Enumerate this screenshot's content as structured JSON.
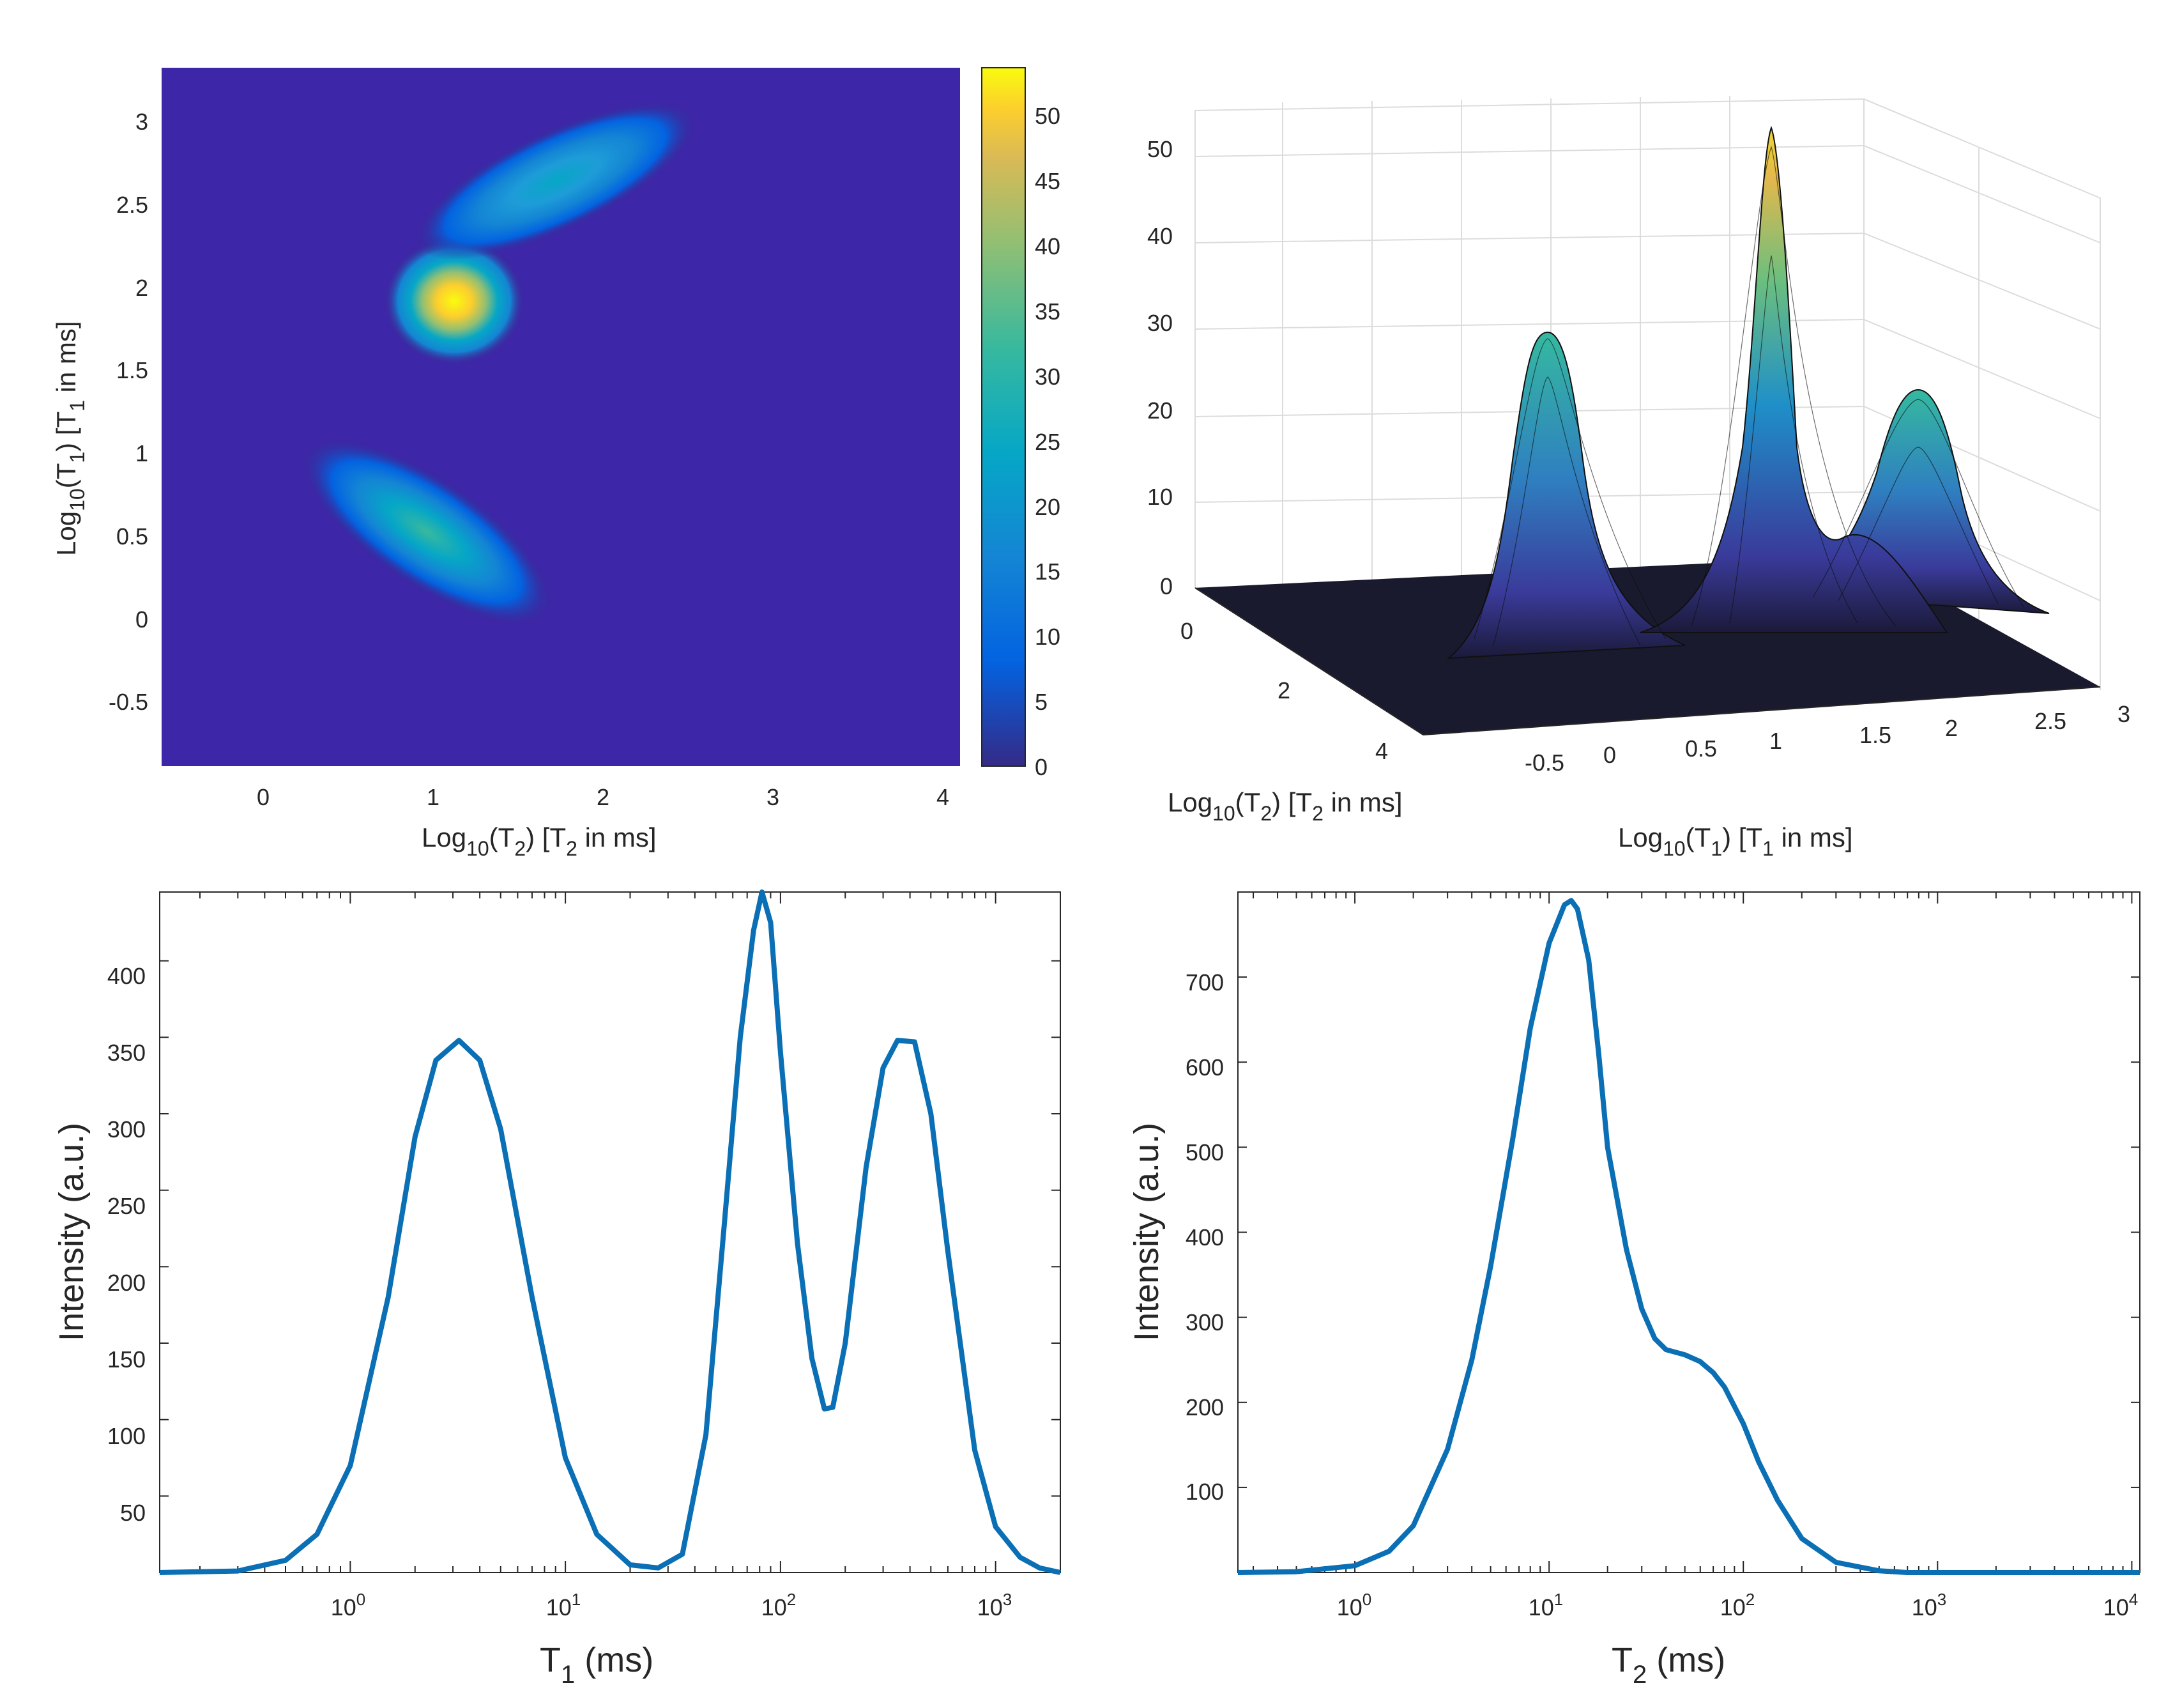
{
  "chart_data": [
    {
      "type": "heatmap",
      "panel": "top-left",
      "xlabel_main": "Log",
      "xlabel_sub": "10",
      "xlabel_rest": "(T",
      "xlabel_sub2": "2",
      "xlabel_tail": ")  [T",
      "xlabel_sub3": "2",
      "xlabel_end": " in ms]",
      "ylabel_main": "Log",
      "ylabel_sub": "10",
      "ylabel_rest": "(T",
      "ylabel_sub2": "1",
      "ylabel_tail": ")  [T",
      "ylabel_sub3": "1",
      "ylabel_end": " in ms]",
      "xlim": [
        -0.55,
        4.15
      ],
      "ylim": [
        -0.9,
        3.3
      ],
      "xticks": [
        "0",
        "1",
        "2",
        "3",
        "4"
      ],
      "yticks": [
        "-0.5",
        "0",
        "0.5",
        "1",
        "1.5",
        "2",
        "2.5",
        "3"
      ],
      "colorbar": {
        "ticks": [
          "0",
          "5",
          "10",
          "15",
          "20",
          "25",
          "30",
          "35",
          "40",
          "45",
          "50"
        ],
        "range": [
          0,
          53
        ]
      },
      "colormap": "parula",
      "peaks": [
        {
          "x": 0.95,
          "y": 0.5,
          "amplitude": 28,
          "shape": "elongated ellipse, tilted"
        },
        {
          "x": 1.15,
          "y": 1.95,
          "amplitude": 53,
          "shape": "round"
        },
        {
          "x": 1.75,
          "y": 2.6,
          "amplitude": 24,
          "shape": "elongated ellipse, tilted"
        }
      ]
    },
    {
      "type": "surface",
      "panel": "top-right",
      "xlabel_main": "Log",
      "xlabel_sub": "10",
      "xlabel_rest": "(T",
      "xlabel_sub2": "2",
      "xlabel_tail": ")  [T",
      "xlabel_sub3": "2",
      "xlabel_end": " in ms]",
      "ylabel_main": "Log",
      "ylabel_sub": "10",
      "ylabel_rest": "(T",
      "ylabel_sub2": "1",
      "ylabel_tail": ")  [T",
      "ylabel_sub3": "1",
      "ylabel_end": " in ms]",
      "zticks": [
        "0",
        "10",
        "20",
        "30",
        "40",
        "50"
      ],
      "t2_ticks": [
        "0",
        "2",
        "4"
      ],
      "t1_ticks": [
        "-0.5",
        "0",
        "0.5",
        "1",
        "1.5",
        "2",
        "2.5",
        "3"
      ],
      "zlim": [
        0,
        55
      ],
      "peaks": [
        {
          "t1": 0.5,
          "height": 30
        },
        {
          "t1": 1.95,
          "height": 53
        },
        {
          "t1": 2.6,
          "height": 24
        }
      ]
    },
    {
      "type": "line",
      "panel": "bottom-left",
      "xlabel": "T",
      "xlabel_sub": "1",
      "xlabel_unit": "  (ms)",
      "ylabel": "Intensity (a.u.)",
      "xscale": "log",
      "xlim": [
        0.13,
        2000
      ],
      "ylim": [
        0,
        445
      ],
      "yticks": [
        "50",
        "100",
        "150",
        "200",
        "250",
        "300",
        "350",
        "400"
      ],
      "xticks": [
        {
          "base": "10",
          "exp": "0"
        },
        {
          "base": "10",
          "exp": "1"
        },
        {
          "base": "10",
          "exp": "2"
        },
        {
          "base": "10",
          "exp": "3"
        }
      ],
      "series": [
        {
          "x": [
            0.13,
            0.3,
            0.5,
            0.7,
            1.0,
            1.5,
            2.0,
            2.5,
            3.2,
            4.0,
            5.0,
            7.0,
            10,
            14,
            20,
            27,
            35,
            45,
            55,
            65,
            75,
            82,
            90,
            100,
            120,
            140,
            160,
            175,
            200,
            250,
            300,
            350,
            420,
            500,
            600,
            800,
            1000,
            1300,
            1600,
            2000
          ],
          "y": [
            0,
            1,
            8,
            25,
            70,
            180,
            285,
            335,
            348,
            335,
            290,
            180,
            75,
            25,
            5,
            3,
            12,
            90,
            230,
            350,
            420,
            445,
            425,
            340,
            215,
            140,
            107,
            108,
            150,
            265,
            330,
            348,
            347,
            300,
            210,
            80,
            30,
            10,
            3,
            0
          ]
        }
      ]
    },
    {
      "type": "line",
      "panel": "bottom-right",
      "xlabel": "T",
      "xlabel_sub": "2",
      "xlabel_unit": "  (ms)",
      "ylabel": "Intensity (a.u.)",
      "xscale": "log",
      "xlim": [
        0.25,
        11000
      ],
      "ylim": [
        0,
        800
      ],
      "yticks": [
        "100",
        "200",
        "300",
        "400",
        "500",
        "600",
        "700"
      ],
      "xticks": [
        {
          "base": "10",
          "exp": "0"
        },
        {
          "base": "10",
          "exp": "1"
        },
        {
          "base": "10",
          "exp": "2"
        },
        {
          "base": "10",
          "exp": "3"
        },
        {
          "base": "10",
          "exp": "4"
        }
      ],
      "series": [
        {
          "x": [
            0.25,
            0.5,
            1.0,
            1.5,
            2.0,
            3.0,
            4.0,
            5.0,
            6.5,
            8.0,
            10,
            12,
            13,
            14,
            16,
            18,
            20,
            25,
            30,
            35,
            40,
            50,
            60,
            70,
            80,
            100,
            120,
            150,
            200,
            300,
            500,
            700,
            1000,
            3000,
            11000
          ],
          "y": [
            0,
            1,
            8,
            25,
            55,
            145,
            250,
            360,
            510,
            640,
            740,
            785,
            790,
            780,
            720,
            610,
            500,
            380,
            310,
            275,
            262,
            256,
            248,
            235,
            218,
            175,
            130,
            85,
            40,
            12,
            2,
            0,
            0,
            0,
            0
          ]
        }
      ]
    }
  ]
}
